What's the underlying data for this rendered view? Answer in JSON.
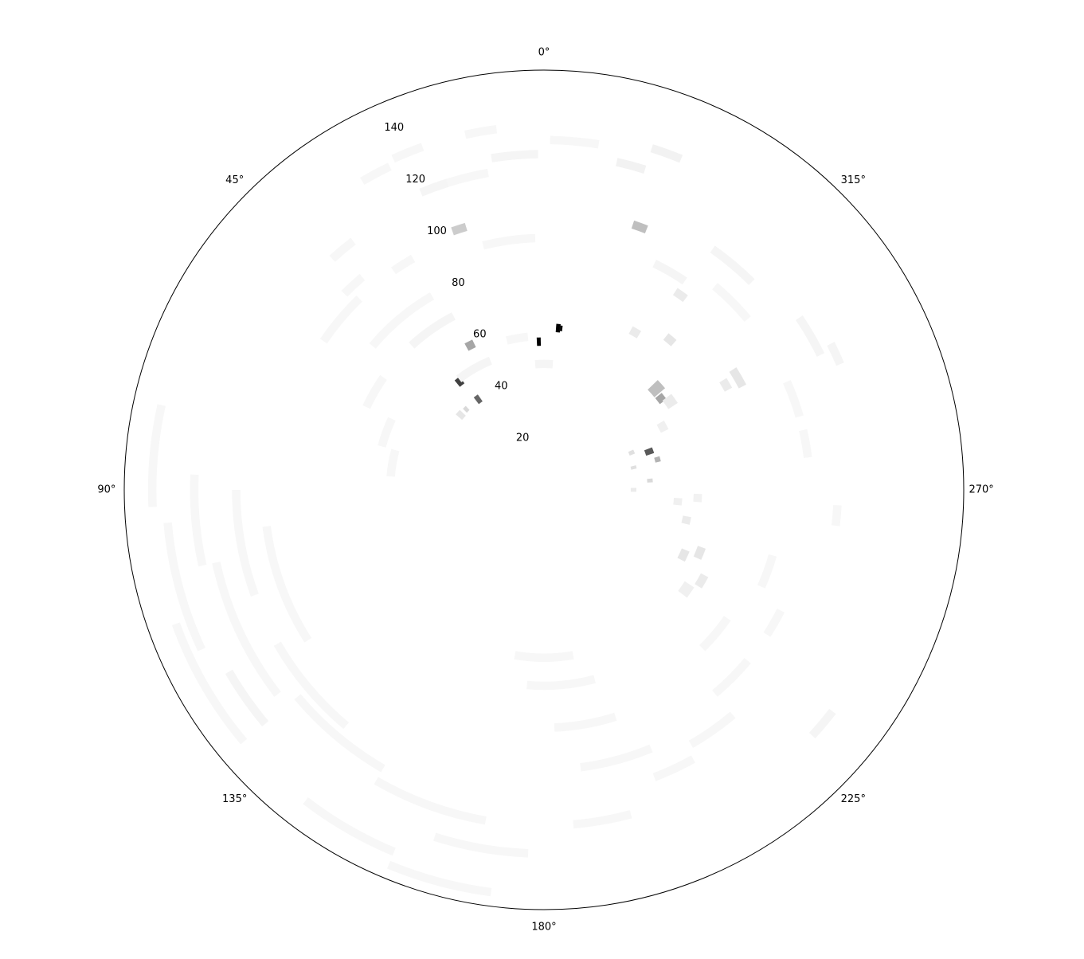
{
  "chart_data": {
    "type": "heatmap",
    "subtype": "polar-histogram",
    "theta_direction": "clockwise",
    "theta_zero": "top",
    "rlim": [
      0,
      150
    ],
    "angle_ticks": [
      {
        "deg": 0,
        "label": "0°"
      },
      {
        "deg": 45,
        "label": "45°"
      },
      {
        "deg": 90,
        "label": "90°"
      },
      {
        "deg": 135,
        "label": "135°"
      },
      {
        "deg": 180,
        "label": "180°"
      },
      {
        "deg": 225,
        "label": "225°"
      },
      {
        "deg": 270,
        "label": "270°"
      },
      {
        "deg": 315,
        "label": "315°"
      }
    ],
    "radial_ticks": [
      {
        "value": 20,
        "label": "20"
      },
      {
        "value": 40,
        "label": "40"
      },
      {
        "value": 60,
        "label": "60"
      },
      {
        "value": 80,
        "label": "80"
      },
      {
        "value": 100,
        "label": "100"
      },
      {
        "value": 120,
        "label": "120"
      },
      {
        "value": 140,
        "label": "140"
      }
    ],
    "radial_label_angle_deg": 22.5,
    "grid": false,
    "colormap": "Greys",
    "cells": [
      {
        "theta": 2,
        "dtheta": 1.5,
        "r": 53,
        "dr": 3,
        "value": 1.0
      },
      {
        "theta": 355,
        "dtheta": 1.5,
        "r": 58,
        "dr": 3,
        "value": 1.0
      },
      {
        "theta": 354,
        "dtheta": 1.0,
        "r": 58,
        "dr": 2,
        "value": 0.95
      },
      {
        "theta": 38,
        "dtheta": 2.5,
        "r": 49,
        "dr": 3,
        "value": 0.75
      },
      {
        "theta": 36,
        "dtheta": 2.5,
        "r": 40,
        "dr": 3,
        "value": 0.6
      },
      {
        "theta": 290,
        "dtheta": 3.0,
        "r": 40,
        "dr": 3,
        "value": 0.65
      },
      {
        "theta": 27,
        "dtheta": 3.0,
        "r": 58,
        "dr": 3,
        "value": 0.35
      },
      {
        "theta": 312,
        "dtheta": 4.0,
        "r": 54,
        "dr": 5,
        "value": 0.25
      },
      {
        "theta": 308,
        "dtheta": 3.0,
        "r": 53,
        "dr": 3,
        "value": 0.35
      },
      {
        "theta": 285,
        "dtheta": 2.5,
        "r": 42,
        "dr": 2,
        "value": 0.3
      },
      {
        "theta": 275,
        "dtheta": 2.0,
        "r": 38,
        "dr": 2,
        "value": 0.15
      },
      {
        "theta": 293,
        "dtheta": 2.5,
        "r": 34,
        "dr": 2,
        "value": 0.12
      },
      {
        "theta": 284,
        "dtheta": 2.0,
        "r": 33,
        "dr": 2,
        "value": 0.12
      },
      {
        "theta": 270,
        "dtheta": 2.5,
        "r": 32,
        "dr": 2,
        "value": 0.08
      },
      {
        "theta": 18,
        "dtheta": 3.0,
        "r": 98,
        "dr": 3,
        "value": 0.2
      },
      {
        "theta": 340,
        "dtheta": 3.0,
        "r": 100,
        "dr": 3,
        "value": 0.25
      },
      {
        "theta": 48,
        "dtheta": 3.0,
        "r": 40,
        "dr": 3,
        "value": 0.1
      },
      {
        "theta": 44,
        "dtheta": 2.0,
        "r": 40,
        "dr": 2,
        "value": 0.15
      },
      {
        "theta": 320,
        "dtheta": 3.0,
        "r": 70,
        "dr": 3,
        "value": 0.1
      },
      {
        "theta": 330,
        "dtheta": 3.0,
        "r": 65,
        "dr": 3,
        "value": 0.08
      },
      {
        "theta": 325,
        "dtheta": 3.0,
        "r": 85,
        "dr": 3,
        "value": 0.08
      },
      {
        "theta": 300,
        "dtheta": 3.0,
        "r": 75,
        "dr": 3,
        "value": 0.08
      },
      {
        "theta": 305,
        "dtheta": 4.0,
        "r": 55,
        "dr": 4,
        "value": 0.08
      },
      {
        "theta": 298,
        "dtheta": 4.0,
        "r": 48,
        "dr": 3,
        "value": 0.06
      },
      {
        "theta": 300,
        "dtheta": 5.0,
        "r": 80,
        "dr": 3,
        "value": 0.1
      },
      {
        "theta": 248,
        "dtheta": 4.0,
        "r": 60,
        "dr": 3,
        "value": 0.1
      },
      {
        "theta": 258,
        "dtheta": 3.0,
        "r": 52,
        "dr": 3,
        "value": 0.08
      },
      {
        "theta": 245,
        "dtheta": 4.0,
        "r": 55,
        "dr": 3,
        "value": 0.1
      },
      {
        "theta": 240,
        "dtheta": 4.0,
        "r": 65,
        "dr": 3,
        "value": 0.08
      },
      {
        "theta": 235,
        "dtheta": 4.0,
        "r": 62,
        "dr": 4,
        "value": 0.06
      },
      {
        "theta": 265,
        "dtheta": 3.0,
        "r": 48,
        "dr": 3,
        "value": 0.06
      },
      {
        "theta": 267,
        "dtheta": 3.0,
        "r": 55,
        "dr": 3,
        "value": 0.05
      },
      {
        "theta": 0,
        "dtheta": 8.0,
        "r": 45,
        "dr": 3,
        "value": 0.04
      },
      {
        "theta": 10,
        "dtheta": 8.0,
        "r": 55,
        "dr": 3,
        "value": 0.03
      },
      {
        "theta": 30,
        "dtheta": 15,
        "r": 50,
        "dr": 3,
        "value": 0.04
      },
      {
        "theta": 35,
        "dtheta": 15,
        "r": 70,
        "dr": 3,
        "value": 0.04
      },
      {
        "theta": 40,
        "dtheta": 20,
        "r": 80,
        "dr": 3,
        "value": 0.03
      },
      {
        "theta": 8,
        "dtheta": 12,
        "r": 90,
        "dr": 3,
        "value": 0.03
      },
      {
        "theta": 15,
        "dtheta": 10,
        "r": 115,
        "dr": 3,
        "value": 0.03
      },
      {
        "theta": 355,
        "dtheta": 8,
        "r": 125,
        "dr": 3,
        "value": 0.03
      },
      {
        "theta": 10,
        "dtheta": 5,
        "r": 130,
        "dr": 3,
        "value": 0.03
      },
      {
        "theta": 5,
        "dtheta": 8,
        "r": 120,
        "dr": 3,
        "value": 0.04
      },
      {
        "theta": 345,
        "dtheta": 5,
        "r": 120,
        "dr": 3,
        "value": 0.05
      },
      {
        "theta": 340,
        "dtheta": 5,
        "r": 128,
        "dr": 3,
        "value": 0.05
      },
      {
        "theta": 20,
        "dtheta": 5,
        "r": 115,
        "dr": 3,
        "value": 0.04
      },
      {
        "theta": 22,
        "dtheta": 5,
        "r": 130,
        "dr": 3,
        "value": 0.03
      },
      {
        "theta": 28,
        "dtheta": 5,
        "r": 128,
        "dr": 3,
        "value": 0.03
      },
      {
        "theta": 40,
        "dtheta": 5,
        "r": 112,
        "dr": 3,
        "value": 0.03
      },
      {
        "theta": 43,
        "dtheta": 5,
        "r": 100,
        "dr": 3,
        "value": 0.03
      },
      {
        "theta": 32,
        "dtheta": 5,
        "r": 95,
        "dr": 3,
        "value": 0.03
      },
      {
        "theta": 50,
        "dtheta": 12,
        "r": 95,
        "dr": 3,
        "value": 0.03
      },
      {
        "theta": 60,
        "dtheta": 10,
        "r": 70,
        "dr": 3,
        "value": 0.03
      },
      {
        "theta": 70,
        "dtheta": 10,
        "r": 60,
        "dr": 3,
        "value": 0.03
      },
      {
        "theta": 80,
        "dtheta": 10,
        "r": 55,
        "dr": 3,
        "value": 0.03
      },
      {
        "theta": 320,
        "dtheta": 10,
        "r": 105,
        "dr": 3,
        "value": 0.04
      },
      {
        "theta": 330,
        "dtheta": 8,
        "r": 90,
        "dr": 3,
        "value": 0.04
      },
      {
        "theta": 315,
        "dtheta": 10,
        "r": 95,
        "dr": 3,
        "value": 0.03
      },
      {
        "theta": 290,
        "dtheta": 8,
        "r": 95,
        "dr": 3,
        "value": 0.03
      },
      {
        "theta": 300,
        "dtheta": 8,
        "r": 110,
        "dr": 3,
        "value": 0.04
      },
      {
        "theta": 295,
        "dtheta": 4,
        "r": 115,
        "dr": 3,
        "value": 0.04
      },
      {
        "theta": 280,
        "dtheta": 6,
        "r": 95,
        "dr": 3,
        "value": 0.03
      },
      {
        "theta": 265,
        "dtheta": 4,
        "r": 105,
        "dr": 3,
        "value": 0.03
      },
      {
        "theta": 240,
        "dtheta": 6,
        "r": 95,
        "dr": 3,
        "value": 0.03
      },
      {
        "theta": 250,
        "dtheta": 8,
        "r": 85,
        "dr": 3,
        "value": 0.03
      },
      {
        "theta": 230,
        "dtheta": 10,
        "r": 80,
        "dr": 3,
        "value": 0.03
      },
      {
        "theta": 225,
        "dtheta": 10,
        "r": 95,
        "dr": 3,
        "value": 0.03
      },
      {
        "theta": 215,
        "dtheta": 10,
        "r": 105,
        "dr": 3,
        "value": 0.03
      },
      {
        "theta": 230,
        "dtheta": 5,
        "r": 130,
        "dr": 3,
        "value": 0.04
      },
      {
        "theta": 205,
        "dtheta": 8,
        "r": 110,
        "dr": 3,
        "value": 0.03
      },
      {
        "theta": 190,
        "dtheta": 10,
        "r": 120,
        "dr": 3,
        "value": 0.03
      },
      {
        "theta": 180,
        "dtheta": 20,
        "r": 60,
        "dr": 3,
        "value": 0.03
      },
      {
        "theta": 185,
        "dtheta": 20,
        "r": 70,
        "dr": 3,
        "value": 0.03
      },
      {
        "theta": 190,
        "dtheta": 15,
        "r": 85,
        "dr": 3,
        "value": 0.03
      },
      {
        "theta": 195,
        "dtheta": 15,
        "r": 100,
        "dr": 3,
        "value": 0.03
      },
      {
        "theta": 160,
        "dtheta": 20,
        "r": 120,
        "dr": 3,
        "value": 0.03
      },
      {
        "theta": 170,
        "dtheta": 15,
        "r": 130,
        "dr": 3,
        "value": 0.03
      },
      {
        "theta": 150,
        "dtheta": 15,
        "r": 140,
        "dr": 3,
        "value": 0.03
      },
      {
        "theta": 140,
        "dtheta": 20,
        "r": 115,
        "dr": 3,
        "value": 0.03
      },
      {
        "theta": 130,
        "dtheta": 20,
        "r": 110,
        "dr": 3,
        "value": 0.03
      },
      {
        "theta": 115,
        "dtheta": 25,
        "r": 120,
        "dr": 3,
        "value": 0.03
      },
      {
        "theta": 105,
        "dtheta": 20,
        "r": 135,
        "dr": 3,
        "value": 0.03
      },
      {
        "theta": 95,
        "dtheta": 15,
        "r": 125,
        "dr": 3,
        "value": 0.03
      },
      {
        "theta": 100,
        "dtheta": 20,
        "r": 110,
        "dr": 3,
        "value": 0.03
      },
      {
        "theta": 110,
        "dtheta": 25,
        "r": 100,
        "dr": 3,
        "value": 0.03
      },
      {
        "theta": 120,
        "dtheta": 20,
        "r": 140,
        "dr": 3,
        "value": 0.03
      },
      {
        "theta": 165,
        "dtheta": 15,
        "r": 145,
        "dr": 3,
        "value": 0.03
      },
      {
        "theta": 85,
        "dtheta": 15,
        "r": 140,
        "dr": 3,
        "value": 0.03
      },
      {
        "theta": 125,
        "dtheta": 10,
        "r": 130,
        "dr": 3,
        "value": 0.04
      }
    ]
  }
}
